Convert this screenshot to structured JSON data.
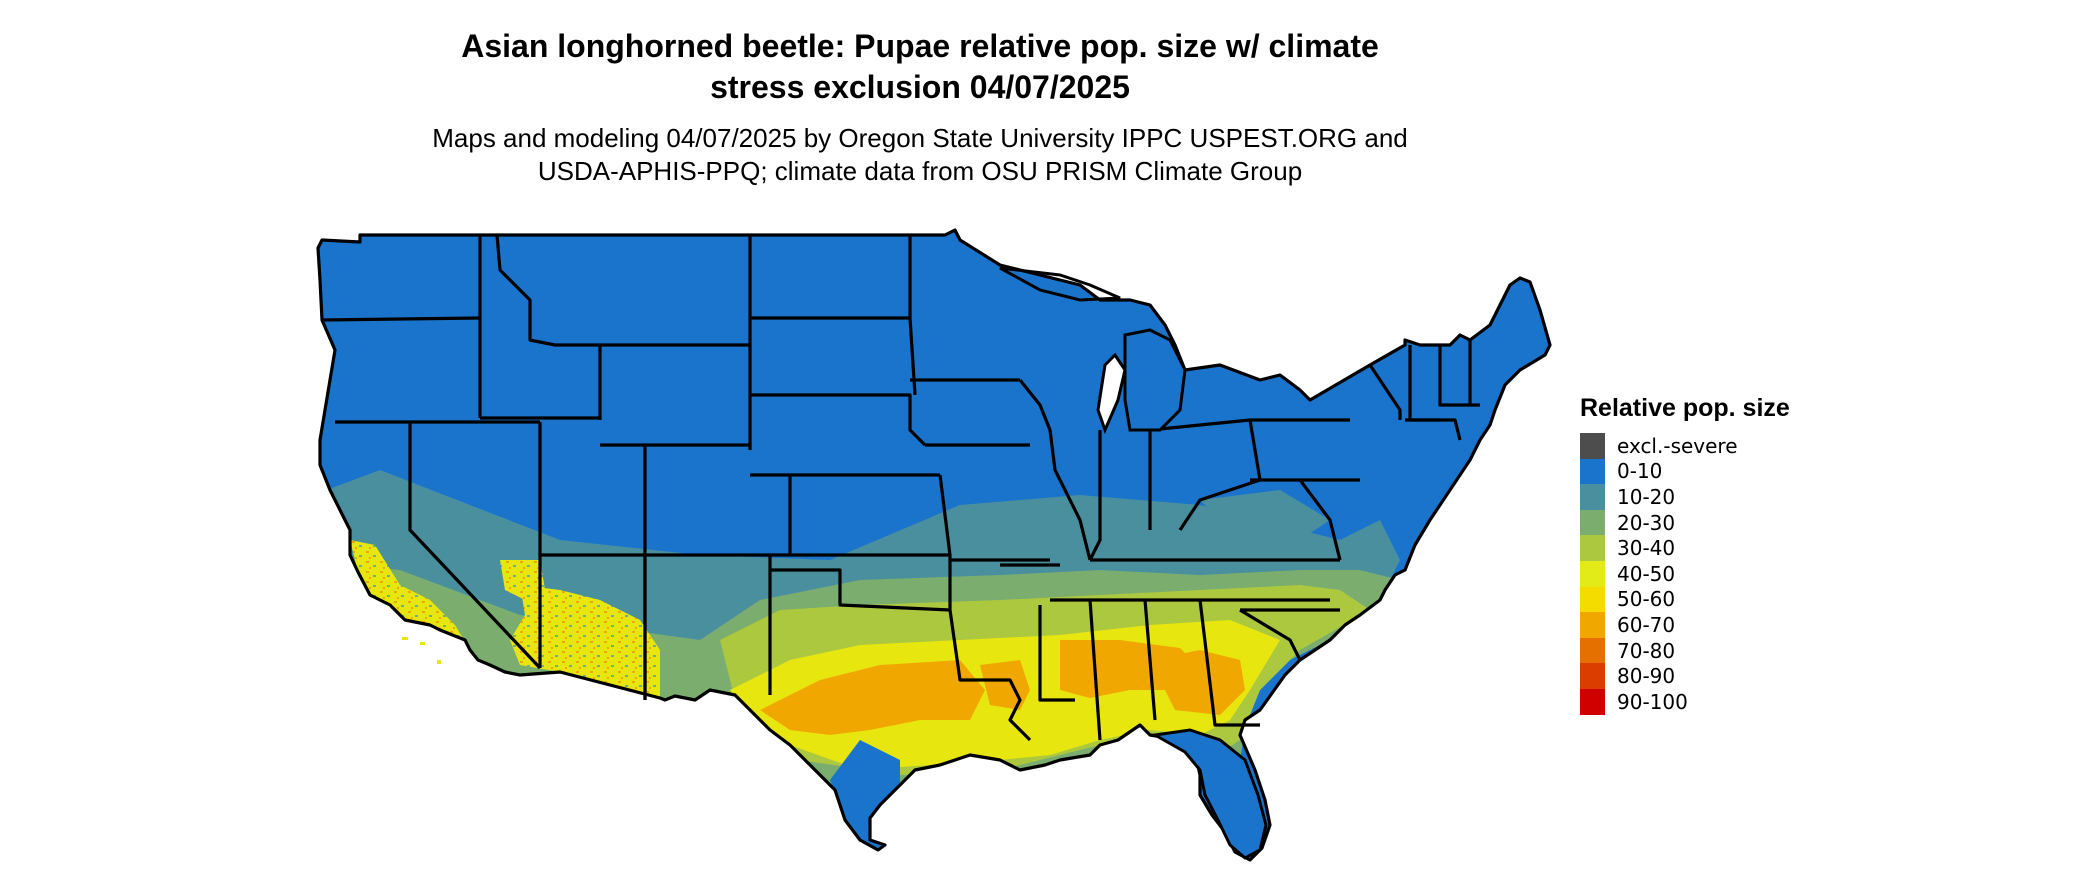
{
  "header": {
    "title_line1": "Asian longhorned beetle: Pupae relative pop. size w/ climate",
    "title_line2": "stress exclusion 04/07/2025",
    "subtitle_line1": "Maps and modeling 04/07/2025 by Oregon State University IPPC USPEST.ORG and",
    "subtitle_line2": "USDA-APHIS-PPQ; climate data from OSU PRISM Climate Group"
  },
  "legend": {
    "title": "Relative pop. size",
    "items": [
      {
        "label": "excl.-severe",
        "color": "#4d4d4d"
      },
      {
        "label": "0-10",
        "color": "#1b74cc"
      },
      {
        "label": "10-20",
        "color": "#4a8f9e"
      },
      {
        "label": "20-30",
        "color": "#7aad6e"
      },
      {
        "label": "30-40",
        "color": "#acc83f"
      },
      {
        "label": "40-50",
        "color": "#e2ea17"
      },
      {
        "label": "50-60",
        "color": "#f5dc00"
      },
      {
        "label": "60-70",
        "color": "#f0a800"
      },
      {
        "label": "70-80",
        "color": "#e57000"
      },
      {
        "label": "80-90",
        "color": "#db3c00"
      },
      {
        "label": "90-100",
        "color": "#d10000"
      }
    ]
  },
  "map": {
    "region": "Contiguous United States",
    "base_color": "#1b74cc",
    "border_color": "#000000"
  }
}
